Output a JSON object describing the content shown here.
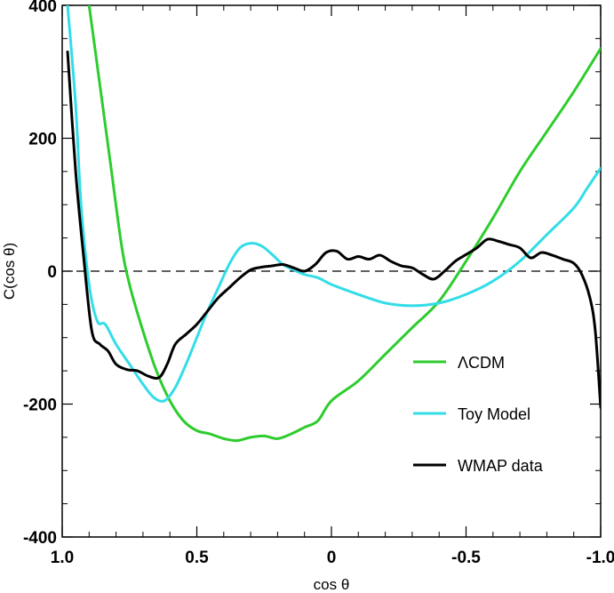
{
  "chart_data": {
    "type": "line",
    "title": "",
    "xlabel": "cos θ",
    "ylabel": "C(cos θ)",
    "xlim": [
      1.0,
      -1.0
    ],
    "ylim": [
      -400,
      400
    ],
    "x_reversed": true,
    "grid": false,
    "x_ticks": [
      {
        "value": 1.0,
        "label": "1.0"
      },
      {
        "value": 0.5,
        "label": "0.5"
      },
      {
        "value": 0.0,
        "label": "0"
      },
      {
        "value": -0.5,
        "label": "-0.5"
      },
      {
        "value": -1.0,
        "label": "-1.0"
      }
    ],
    "y_ticks": [
      {
        "value": 400,
        "label": "400"
      },
      {
        "value": 200,
        "label": "200"
      },
      {
        "value": 0,
        "label": "0"
      },
      {
        "value": -200,
        "label": "-200"
      },
      {
        "value": -400,
        "label": "-400"
      }
    ],
    "reference_line": {
      "y": 0,
      "style": "dashed"
    },
    "legend_position": "lower-right",
    "series": [
      {
        "name": "ΛCDM",
        "color": "#2ecc2e",
        "points": [
          [
            0.9,
            400
          ],
          [
            0.86,
            280
          ],
          [
            0.82,
            160
          ],
          [
            0.78,
            40
          ],
          [
            0.75,
            -20
          ],
          [
            0.7,
            -90
          ],
          [
            0.65,
            -150
          ],
          [
            0.6,
            -195
          ],
          [
            0.55,
            -225
          ],
          [
            0.5,
            -240
          ],
          [
            0.45,
            -245
          ],
          [
            0.4,
            -252
          ],
          [
            0.35,
            -255
          ],
          [
            0.3,
            -250
          ],
          [
            0.25,
            -248
          ],
          [
            0.2,
            -252
          ],
          [
            0.15,
            -245
          ],
          [
            0.1,
            -235
          ],
          [
            0.05,
            -225
          ],
          [
            0.0,
            -195
          ],
          [
            -0.1,
            -165
          ],
          [
            -0.2,
            -125
          ],
          [
            -0.3,
            -85
          ],
          [
            -0.4,
            -45
          ],
          [
            -0.5,
            15
          ],
          [
            -0.6,
            80
          ],
          [
            -0.7,
            150
          ],
          [
            -0.8,
            210
          ],
          [
            -0.9,
            270
          ],
          [
            -1.0,
            335
          ]
        ]
      },
      {
        "name": "Toy Model",
        "color": "#33dde8",
        "points": [
          [
            0.98,
            400
          ],
          [
            0.95,
            250
          ],
          [
            0.93,
            100
          ],
          [
            0.9,
            -20
          ],
          [
            0.87,
            -75
          ],
          [
            0.84,
            -80
          ],
          [
            0.8,
            -110
          ],
          [
            0.75,
            -140
          ],
          [
            0.7,
            -170
          ],
          [
            0.66,
            -190
          ],
          [
            0.62,
            -195
          ],
          [
            0.58,
            -175
          ],
          [
            0.54,
            -140
          ],
          [
            0.5,
            -100
          ],
          [
            0.46,
            -60
          ],
          [
            0.42,
            -25
          ],
          [
            0.38,
            10
          ],
          [
            0.34,
            35
          ],
          [
            0.3,
            42
          ],
          [
            0.26,
            38
          ],
          [
            0.22,
            25
          ],
          [
            0.18,
            10
          ],
          [
            0.14,
            2
          ],
          [
            0.1,
            -5
          ],
          [
            0.05,
            -10
          ],
          [
            0.0,
            -20
          ],
          [
            -0.1,
            -35
          ],
          [
            -0.2,
            -48
          ],
          [
            -0.3,
            -52
          ],
          [
            -0.4,
            -48
          ],
          [
            -0.5,
            -35
          ],
          [
            -0.6,
            -15
          ],
          [
            -0.7,
            15
          ],
          [
            -0.8,
            55
          ],
          [
            -0.9,
            95
          ],
          [
            -0.95,
            125
          ],
          [
            -1.0,
            155
          ]
        ]
      },
      {
        "name": "WMAP data",
        "color": "#000000",
        "points": [
          [
            0.98,
            330
          ],
          [
            0.95,
            150
          ],
          [
            0.92,
            20
          ],
          [
            0.89,
            -90
          ],
          [
            0.86,
            -110
          ],
          [
            0.83,
            -120
          ],
          [
            0.8,
            -140
          ],
          [
            0.76,
            -148
          ],
          [
            0.72,
            -150
          ],
          [
            0.68,
            -158
          ],
          [
            0.64,
            -160
          ],
          [
            0.61,
            -140
          ],
          [
            0.58,
            -110
          ],
          [
            0.54,
            -95
          ],
          [
            0.5,
            -80
          ],
          [
            0.46,
            -60
          ],
          [
            0.42,
            -40
          ],
          [
            0.38,
            -25
          ],
          [
            0.34,
            -10
          ],
          [
            0.3,
            2
          ],
          [
            0.26,
            6
          ],
          [
            0.22,
            8
          ],
          [
            0.18,
            10
          ],
          [
            0.14,
            5
          ],
          [
            0.1,
            0
          ],
          [
            0.06,
            10
          ],
          [
            0.02,
            28
          ],
          [
            -0.02,
            30
          ],
          [
            -0.06,
            18
          ],
          [
            -0.1,
            22
          ],
          [
            -0.14,
            18
          ],
          [
            -0.18,
            24
          ],
          [
            -0.22,
            15
          ],
          [
            -0.26,
            8
          ],
          [
            -0.3,
            5
          ],
          [
            -0.34,
            -5
          ],
          [
            -0.38,
            -12
          ],
          [
            -0.42,
            0
          ],
          [
            -0.46,
            15
          ],
          [
            -0.5,
            25
          ],
          [
            -0.54,
            35
          ],
          [
            -0.58,
            48
          ],
          [
            -0.62,
            45
          ],
          [
            -0.66,
            40
          ],
          [
            -0.7,
            35
          ],
          [
            -0.74,
            20
          ],
          [
            -0.78,
            28
          ],
          [
            -0.82,
            24
          ],
          [
            -0.86,
            18
          ],
          [
            -0.9,
            12
          ],
          [
            -0.93,
            -5
          ],
          [
            -0.96,
            -40
          ],
          [
            -0.98,
            -90
          ],
          [
            -1.0,
            -205
          ]
        ]
      }
    ]
  }
}
